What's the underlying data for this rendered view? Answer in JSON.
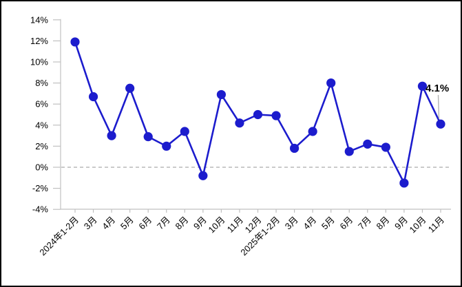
{
  "chart_data": {
    "type": "line",
    "categories": [
      "2024年1-2月",
      "3月",
      "4月",
      "5月",
      "6月",
      "7月",
      "8月",
      "9月",
      "10月",
      "11月",
      "12月",
      "2025年1-2月",
      "3月",
      "4月",
      "5月",
      "6月",
      "7月",
      "8月",
      "9月",
      "10月",
      "11月"
    ],
    "values": [
      11.9,
      6.7,
      3.0,
      7.5,
      2.9,
      2.0,
      3.4,
      -0.8,
      6.9,
      4.2,
      5.0,
      4.9,
      1.8,
      3.4,
      8.0,
      1.5,
      2.2,
      1.9,
      -1.5,
      7.7,
      4.1
    ],
    "title": "",
    "xlabel": "",
    "ylabel": "",
    "ylim": [
      -4,
      14
    ],
    "ytick_values": [
      14,
      12,
      10,
      8,
      6,
      4,
      2,
      0,
      -2,
      -4
    ],
    "ytick_labels": [
      "14%",
      "12%",
      "10%",
      "8%",
      "6%",
      "4%",
      "2%",
      "0%",
      "-2%",
      "-4%"
    ],
    "grid": "off",
    "zero_line": "dashed",
    "legend_position": "none",
    "annotation": {
      "text": "4.1%",
      "index": 20
    }
  },
  "colors": {
    "line": "#1c1ccd",
    "marker": "#1c1ccd",
    "axis": "#c0c0c0",
    "zero_line": "#aaaaaa",
    "text": "#000000",
    "leader_line": "#b3b3b3",
    "frame_border": "#000000",
    "background": "#ffffff"
  }
}
